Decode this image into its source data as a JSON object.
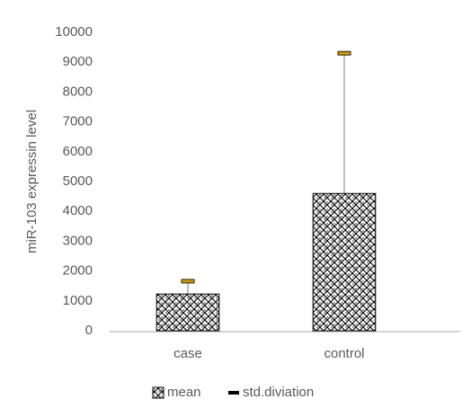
{
  "chart_data": {
    "type": "bar",
    "y_label": "miR-103 expressin level",
    "categories": [
      "case",
      "control"
    ],
    "series": [
      {
        "name": "mean",
        "color": "#000000",
        "values": [
          1230,
          4600
        ]
      },
      {
        "name": "std.diviation",
        "color": "#c59a1f",
        "values": [
          430,
          4700
        ]
      }
    ],
    "ylim": [
      0,
      10000
    ],
    "yticks": [
      0,
      1000,
      2000,
      3000,
      4000,
      5000,
      6000,
      7000,
      8000,
      9000,
      10000
    ],
    "grid": false,
    "legend": "bottom"
  }
}
